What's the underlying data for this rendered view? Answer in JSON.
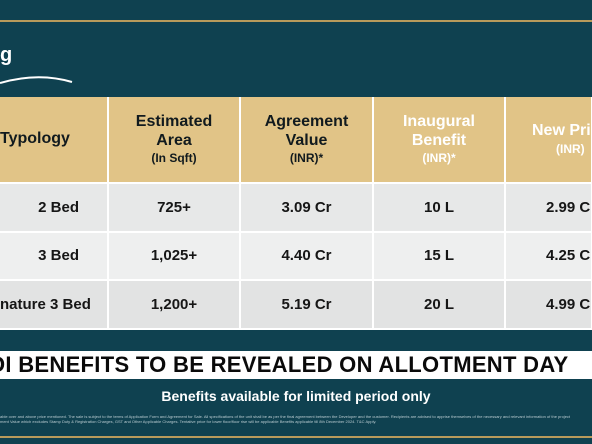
{
  "brand": {
    "logo_text": "g"
  },
  "table": {
    "headers": [
      {
        "main": "Typology",
        "sub": ""
      },
      {
        "main": "Estimated Area",
        "sub": "(In Sqft)"
      },
      {
        "main": "Agreement Value",
        "sub": "(INR)*"
      },
      {
        "main": "Inaugural Benefit",
        "sub": "(INR)*"
      },
      {
        "main": "New Pri",
        "sub": "(INR)"
      }
    ],
    "rows": [
      {
        "typology": "2 Bed",
        "area": "725+",
        "agreement_value": "3.09 Cr",
        "inaugural_benefit": "10 L",
        "new_price": "2.99 C"
      },
      {
        "typology": "3 Bed",
        "area": "1,025+",
        "agreement_value": "4.40 Cr",
        "inaugural_benefit": "15 L",
        "new_price": "4.25 C"
      },
      {
        "typology": "nature 3 Bed",
        "area": "1,200+",
        "agreement_value": "5.19 Cr",
        "inaugural_benefit": "20 L",
        "new_price": "4.99 C"
      }
    ]
  },
  "banner": {
    "text": "OI BENEFITS TO BE REVEALED ON ALLOTMENT DAY"
  },
  "note": {
    "text": "Benefits available for limited period only"
  },
  "disclaimer": {
    "line1": "able over and above price mentioned. The sale is subject to the terms of Application Form and Agreement for Sale. All specifications of the unit shall be as per the final agreement between the Developer and the customer. Recipients are advised to apprise themselves of the necessary and relevant information of the project",
    "line2": "ment Value which excludes Stamp Duty & Registration Charges, GST and Other Applicable Charges. Tentative price for lower floor/floor rise will be applicable Benefits applicable till 8th December 2024. T&C Apply."
  },
  "colors": {
    "background": "#0f4150",
    "header_gold": "#e1c487",
    "accent_gold": "#b89a5b",
    "row_grey": "#e7e8e8"
  }
}
